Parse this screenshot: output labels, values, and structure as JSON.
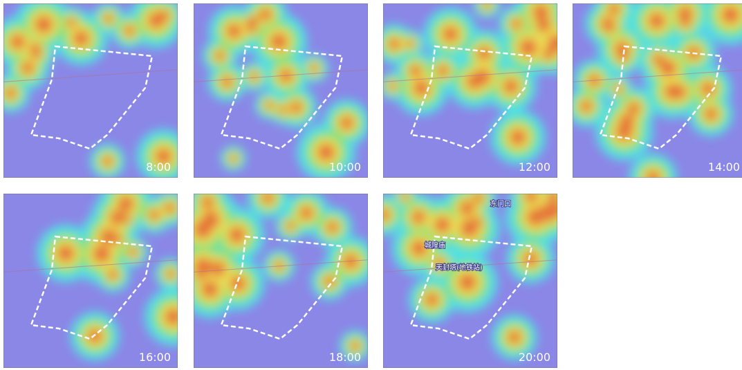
{
  "panels": [
    {
      "time": "8:00"
    },
    {
      "time": "10:00"
    },
    {
      "time": "12:00"
    },
    {
      "time": "14:00"
    },
    {
      "time": "16:00"
    },
    {
      "time": "18:00"
    },
    {
      "time": "20:00",
      "places": [
        "东门口",
        "城隍庙",
        "天封塔(地铁站)"
      ]
    }
  ]
}
